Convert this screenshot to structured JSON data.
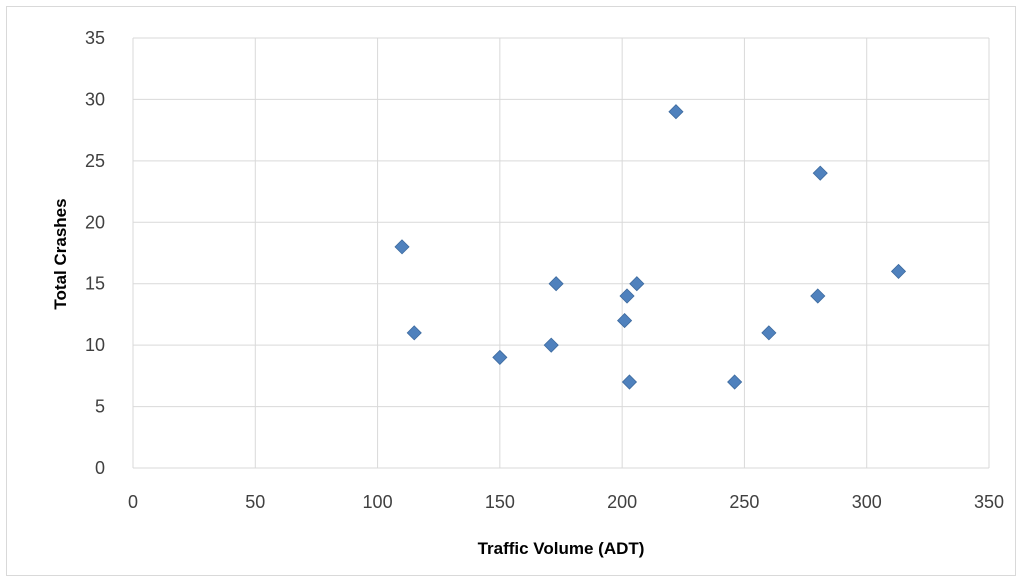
{
  "chart_data": {
    "type": "scatter",
    "title": "",
    "xlabel": "Traffic Volume (ADT)",
    "ylabel": "Total Crashes",
    "xlim": [
      0,
      350
    ],
    "ylim": [
      0,
      35
    ],
    "x_ticks": [
      0,
      50,
      100,
      150,
      200,
      250,
      300,
      350
    ],
    "y_ticks": [
      0,
      5,
      10,
      15,
      20,
      25,
      30,
      35
    ],
    "grid": true,
    "legend": "none",
    "marker": "diamond",
    "marker_color": "#4f81bd",
    "points": [
      {
        "x": 110,
        "y": 18
      },
      {
        "x": 115,
        "y": 11
      },
      {
        "x": 150,
        "y": 9
      },
      {
        "x": 171,
        "y": 10
      },
      {
        "x": 173,
        "y": 15
      },
      {
        "x": 201,
        "y": 12
      },
      {
        "x": 202,
        "y": 14
      },
      {
        "x": 203,
        "y": 7
      },
      {
        "x": 206,
        "y": 15
      },
      {
        "x": 222,
        "y": 29
      },
      {
        "x": 246,
        "y": 7
      },
      {
        "x": 260,
        "y": 11
      },
      {
        "x": 280,
        "y": 14
      },
      {
        "x": 281,
        "y": 24
      },
      {
        "x": 313,
        "y": 16
      }
    ]
  }
}
